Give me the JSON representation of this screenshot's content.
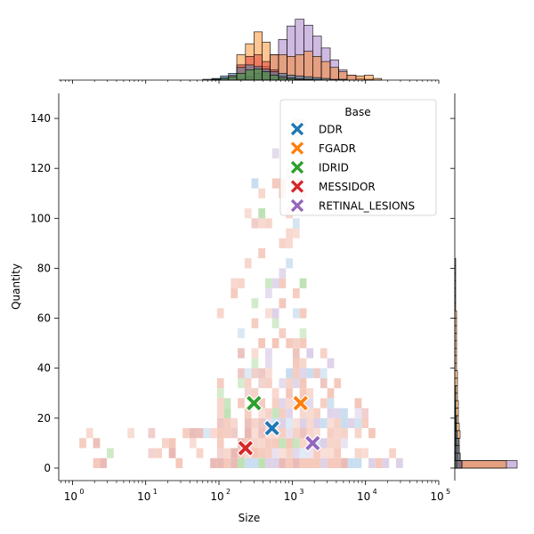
{
  "chart_data": {
    "type": "scatter",
    "xlabel": "Size",
    "ylabel": "Quantity",
    "x_scale": "log",
    "xlim": [
      0.65,
      100000
    ],
    "ylim": [
      -5,
      150
    ],
    "x_ticks": [
      {
        "value": 1,
        "label": "10",
        "exp": "0"
      },
      {
        "value": 10,
        "label": "10",
        "exp": "1"
      },
      {
        "value": 100,
        "label": "10",
        "exp": "2"
      },
      {
        "value": 1000,
        "label": "10",
        "exp": "3"
      },
      {
        "value": 10000,
        "label": "10",
        "exp": "4"
      },
      {
        "value": 100000,
        "label": "10",
        "exp": "5"
      }
    ],
    "y_ticks": [
      0,
      20,
      40,
      60,
      80,
      100,
      120,
      140
    ],
    "legend": {
      "title": "Base",
      "placement": "top-right"
    },
    "series": [
      {
        "name": "DDR",
        "color": "#1f77b4",
        "mean": {
          "x": 530,
          "y": 16
        }
      },
      {
        "name": "FGADR",
        "color": "#ff7f0e",
        "mean": {
          "x": 1300,
          "y": 26
        }
      },
      {
        "name": "IDRID",
        "color": "#2ca02c",
        "mean": {
          "x": 300,
          "y": 26
        }
      },
      {
        "name": "MESSIDOR",
        "color": "#d62728",
        "mean": {
          "x": 230,
          "y": 8
        }
      },
      {
        "name": "RETINAL_LESIONS",
        "color": "#9467bd",
        "mean": {
          "x": 1900,
          "y": 10
        }
      }
    ],
    "marginal_x": {
      "bins": [
        {
          "x0": 60,
          "x1": 80,
          "h": [
            1,
            0,
            0,
            0,
            0
          ]
        },
        {
          "x0": 80,
          "x1": 105,
          "h": [
            2,
            0,
            1,
            1,
            0
          ]
        },
        {
          "x0": 105,
          "x1": 135,
          "h": [
            5,
            0,
            2,
            3,
            0
          ]
        },
        {
          "x0": 135,
          "x1": 175,
          "h": [
            8,
            6,
            4,
            6,
            0
          ]
        },
        {
          "x0": 175,
          "x1": 230,
          "h": [
            15,
            30,
            8,
            18,
            2
          ]
        },
        {
          "x0": 230,
          "x1": 300,
          "h": [
            18,
            43,
            12,
            28,
            4
          ]
        },
        {
          "x0": 300,
          "x1": 390,
          "h": [
            16,
            57,
            13,
            30,
            8
          ]
        },
        {
          "x0": 390,
          "x1": 500,
          "h": [
            13,
            45,
            10,
            22,
            16
          ]
        },
        {
          "x0": 500,
          "x1": 650,
          "h": [
            10,
            30,
            6,
            12,
            30
          ]
        },
        {
          "x0": 650,
          "x1": 850,
          "h": [
            8,
            30,
            3,
            5,
            48
          ]
        },
        {
          "x0": 850,
          "x1": 1100,
          "h": [
            6,
            28,
            2,
            3,
            64
          ]
        },
        {
          "x0": 1100,
          "x1": 1450,
          "h": [
            5,
            30,
            1,
            2,
            72
          ]
        },
        {
          "x0": 1450,
          "x1": 1900,
          "h": [
            4,
            34,
            1,
            1,
            65
          ]
        },
        {
          "x0": 1900,
          "x1": 2500,
          "h": [
            3,
            28,
            0,
            1,
            52
          ]
        },
        {
          "x0": 2500,
          "x1": 3300,
          "h": [
            2,
            22,
            0,
            0,
            38
          ]
        },
        {
          "x0": 3300,
          "x1": 4300,
          "h": [
            1,
            15,
            0,
            0,
            24
          ]
        },
        {
          "x0": 4300,
          "x1": 5600,
          "h": [
            1,
            10,
            0,
            0,
            12
          ]
        },
        {
          "x0": 5600,
          "x1": 7400,
          "h": [
            0,
            6,
            0,
            0,
            6
          ]
        },
        {
          "x0": 7400,
          "x1": 9700,
          "h": [
            0,
            5,
            0,
            0,
            2
          ]
        },
        {
          "x0": 9700,
          "x1": 12700,
          "h": [
            0,
            6,
            0,
            0,
            1
          ]
        },
        {
          "x0": 12700,
          "x1": 16600,
          "h": [
            0,
            2,
            0,
            0,
            0
          ]
        }
      ]
    },
    "marginal_y": {
      "bins": [
        {
          "y0": 0,
          "y1": 3,
          "w": [
            8,
            58,
            2,
            8,
            70
          ]
        },
        {
          "y0": 3,
          "y1": 6,
          "w": [
            6,
            6,
            1,
            3,
            4
          ]
        },
        {
          "y0": 6,
          "y1": 9,
          "w": [
            5,
            5,
            1,
            3,
            3
          ]
        },
        {
          "y0": 9,
          "y1": 12,
          "w": [
            4,
            5,
            1,
            2,
            2
          ]
        },
        {
          "y0": 12,
          "y1": 15,
          "w": [
            3,
            6,
            1,
            1,
            2
          ]
        },
        {
          "y0": 15,
          "y1": 18,
          "w": [
            2,
            5,
            1,
            1,
            1
          ]
        },
        {
          "y0": 18,
          "y1": 21,
          "w": [
            2,
            4,
            1,
            1,
            1
          ]
        },
        {
          "y0": 21,
          "y1": 24,
          "w": [
            1,
            4,
            1,
            1,
            0
          ]
        },
        {
          "y0": 24,
          "y1": 27,
          "w": [
            1,
            4,
            1,
            0,
            0
          ]
        },
        {
          "y0": 27,
          "y1": 30,
          "w": [
            1,
            3,
            0,
            0,
            0
          ]
        },
        {
          "y0": 30,
          "y1": 33,
          "w": [
            1,
            3,
            0,
            0,
            0
          ]
        },
        {
          "y0": 33,
          "y1": 36,
          "w": [
            0,
            3,
            0,
            0,
            0
          ]
        },
        {
          "y0": 36,
          "y1": 39,
          "w": [
            0,
            3,
            0,
            0,
            0
          ]
        },
        {
          "y0": 39,
          "y1": 42,
          "w": [
            0,
            2,
            0,
            0,
            0
          ]
        },
        {
          "y0": 42,
          "y1": 45,
          "w": [
            0,
            2,
            0,
            0,
            0
          ]
        },
        {
          "y0": 45,
          "y1": 48,
          "w": [
            0,
            2,
            0,
            0,
            0
          ]
        },
        {
          "y0": 48,
          "y1": 51,
          "w": [
            0,
            2,
            0,
            0,
            0
          ]
        },
        {
          "y0": 51,
          "y1": 54,
          "w": [
            0,
            2,
            0,
            0,
            0
          ]
        },
        {
          "y0": 54,
          "y1": 57,
          "w": [
            0,
            2,
            0,
            0,
            0
          ]
        },
        {
          "y0": 57,
          "y1": 60,
          "w": [
            0,
            2,
            0,
            0,
            0
          ]
        },
        {
          "y0": 60,
          "y1": 63,
          "w": [
            0,
            2,
            0,
            0,
            0
          ]
        },
        {
          "y0": 63,
          "y1": 66,
          "w": [
            0,
            1,
            0,
            0,
            0
          ]
        },
        {
          "y0": 66,
          "y1": 69,
          "w": [
            0,
            1,
            0,
            0,
            0
          ]
        },
        {
          "y0": 69,
          "y1": 72,
          "w": [
            0,
            1,
            0,
            0,
            0
          ]
        },
        {
          "y0": 72,
          "y1": 75,
          "w": [
            0,
            1,
            0,
            0,
            0
          ]
        },
        {
          "y0": 75,
          "y1": 78,
          "w": [
            0,
            1,
            0,
            0,
            0
          ]
        },
        {
          "y0": 78,
          "y1": 81,
          "w": [
            0,
            1,
            0,
            0,
            0
          ]
        },
        {
          "y0": 81,
          "y1": 84,
          "w": [
            0,
            1,
            0,
            0,
            0
          ]
        }
      ]
    }
  }
}
